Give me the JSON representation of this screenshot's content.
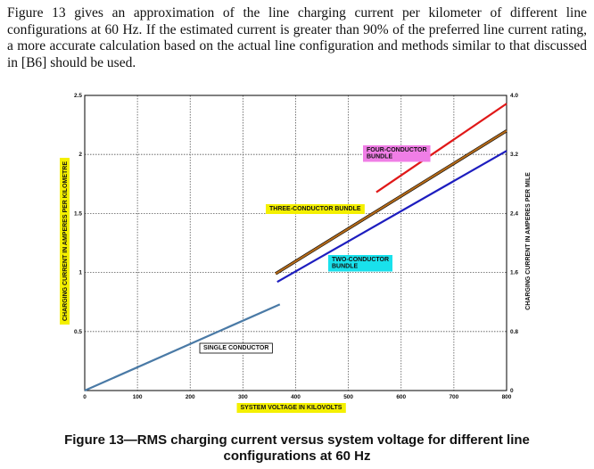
{
  "intro_text": "Figure 13 gives an approximation of the line charging current per kilometer of different line configurations at 60 Hz. If the estimated current is greater than 90% of the preferred line current rating, a more accurate calculation based on the actual line configuration and methods similar to that discussed in [B6] should be used.",
  "caption": "Figure 13—RMS charging current versus system voltage for different line configurations at 60 Hz",
  "colors": {
    "single": "#4a7aa6",
    "two": "#1d1dbf",
    "three": "#b36a1a",
    "four": "#e01818",
    "highlight_yellow": "#f4f000",
    "highlight_cyan": "#19e1ec",
    "highlight_magenta": "#f07ee6"
  },
  "chart_data": {
    "type": "line",
    "xlabel": "SYSTEM VOLTAGE IN KILOVOLTS",
    "ylabel": "CHARGING CURRENT IN AMPERES PER KILOMETRE",
    "y2label": "CHARGING CURRENT IN AMPERES PER MILE",
    "xlim": [
      0,
      800
    ],
    "ylim": [
      0,
      2.5
    ],
    "y2lim": [
      0,
      4.0
    ],
    "xticks": [
      "0",
      "100",
      "200",
      "300",
      "400",
      "500",
      "600",
      "700",
      "800"
    ],
    "yticks": [
      "",
      "0.5",
      "1",
      "1.5",
      "2",
      "2.5"
    ],
    "y2ticks": [
      "0",
      "0.8",
      "1.6",
      "2.4",
      "3.2",
      "4.0"
    ],
    "grid": true,
    "series": [
      {
        "name": "SINGLE CONDUCTOR",
        "color_key": "single",
        "label_bg": "none",
        "x": [
          0,
          370
        ],
        "y": [
          0,
          0.73
        ]
      },
      {
        "name": "TWO-CONDUCTOR BUNDLE",
        "color_key": "two",
        "label_bg": "highlight_cyan",
        "x": [
          365,
          800
        ],
        "y": [
          0.92,
          2.03
        ]
      },
      {
        "name": "THREE-CONDUCTOR BUNDLE",
        "color_key": "three",
        "label_bg": "highlight_yellow",
        "x": [
          362,
          800
        ],
        "y": [
          0.99,
          2.2
        ]
      },
      {
        "name": "FOUR-CONDUCTOR BUNDLE",
        "color_key": "four",
        "label_bg": "highlight_magenta",
        "x": [
          553,
          800
        ],
        "y": [
          1.68,
          2.43
        ]
      }
    ]
  }
}
